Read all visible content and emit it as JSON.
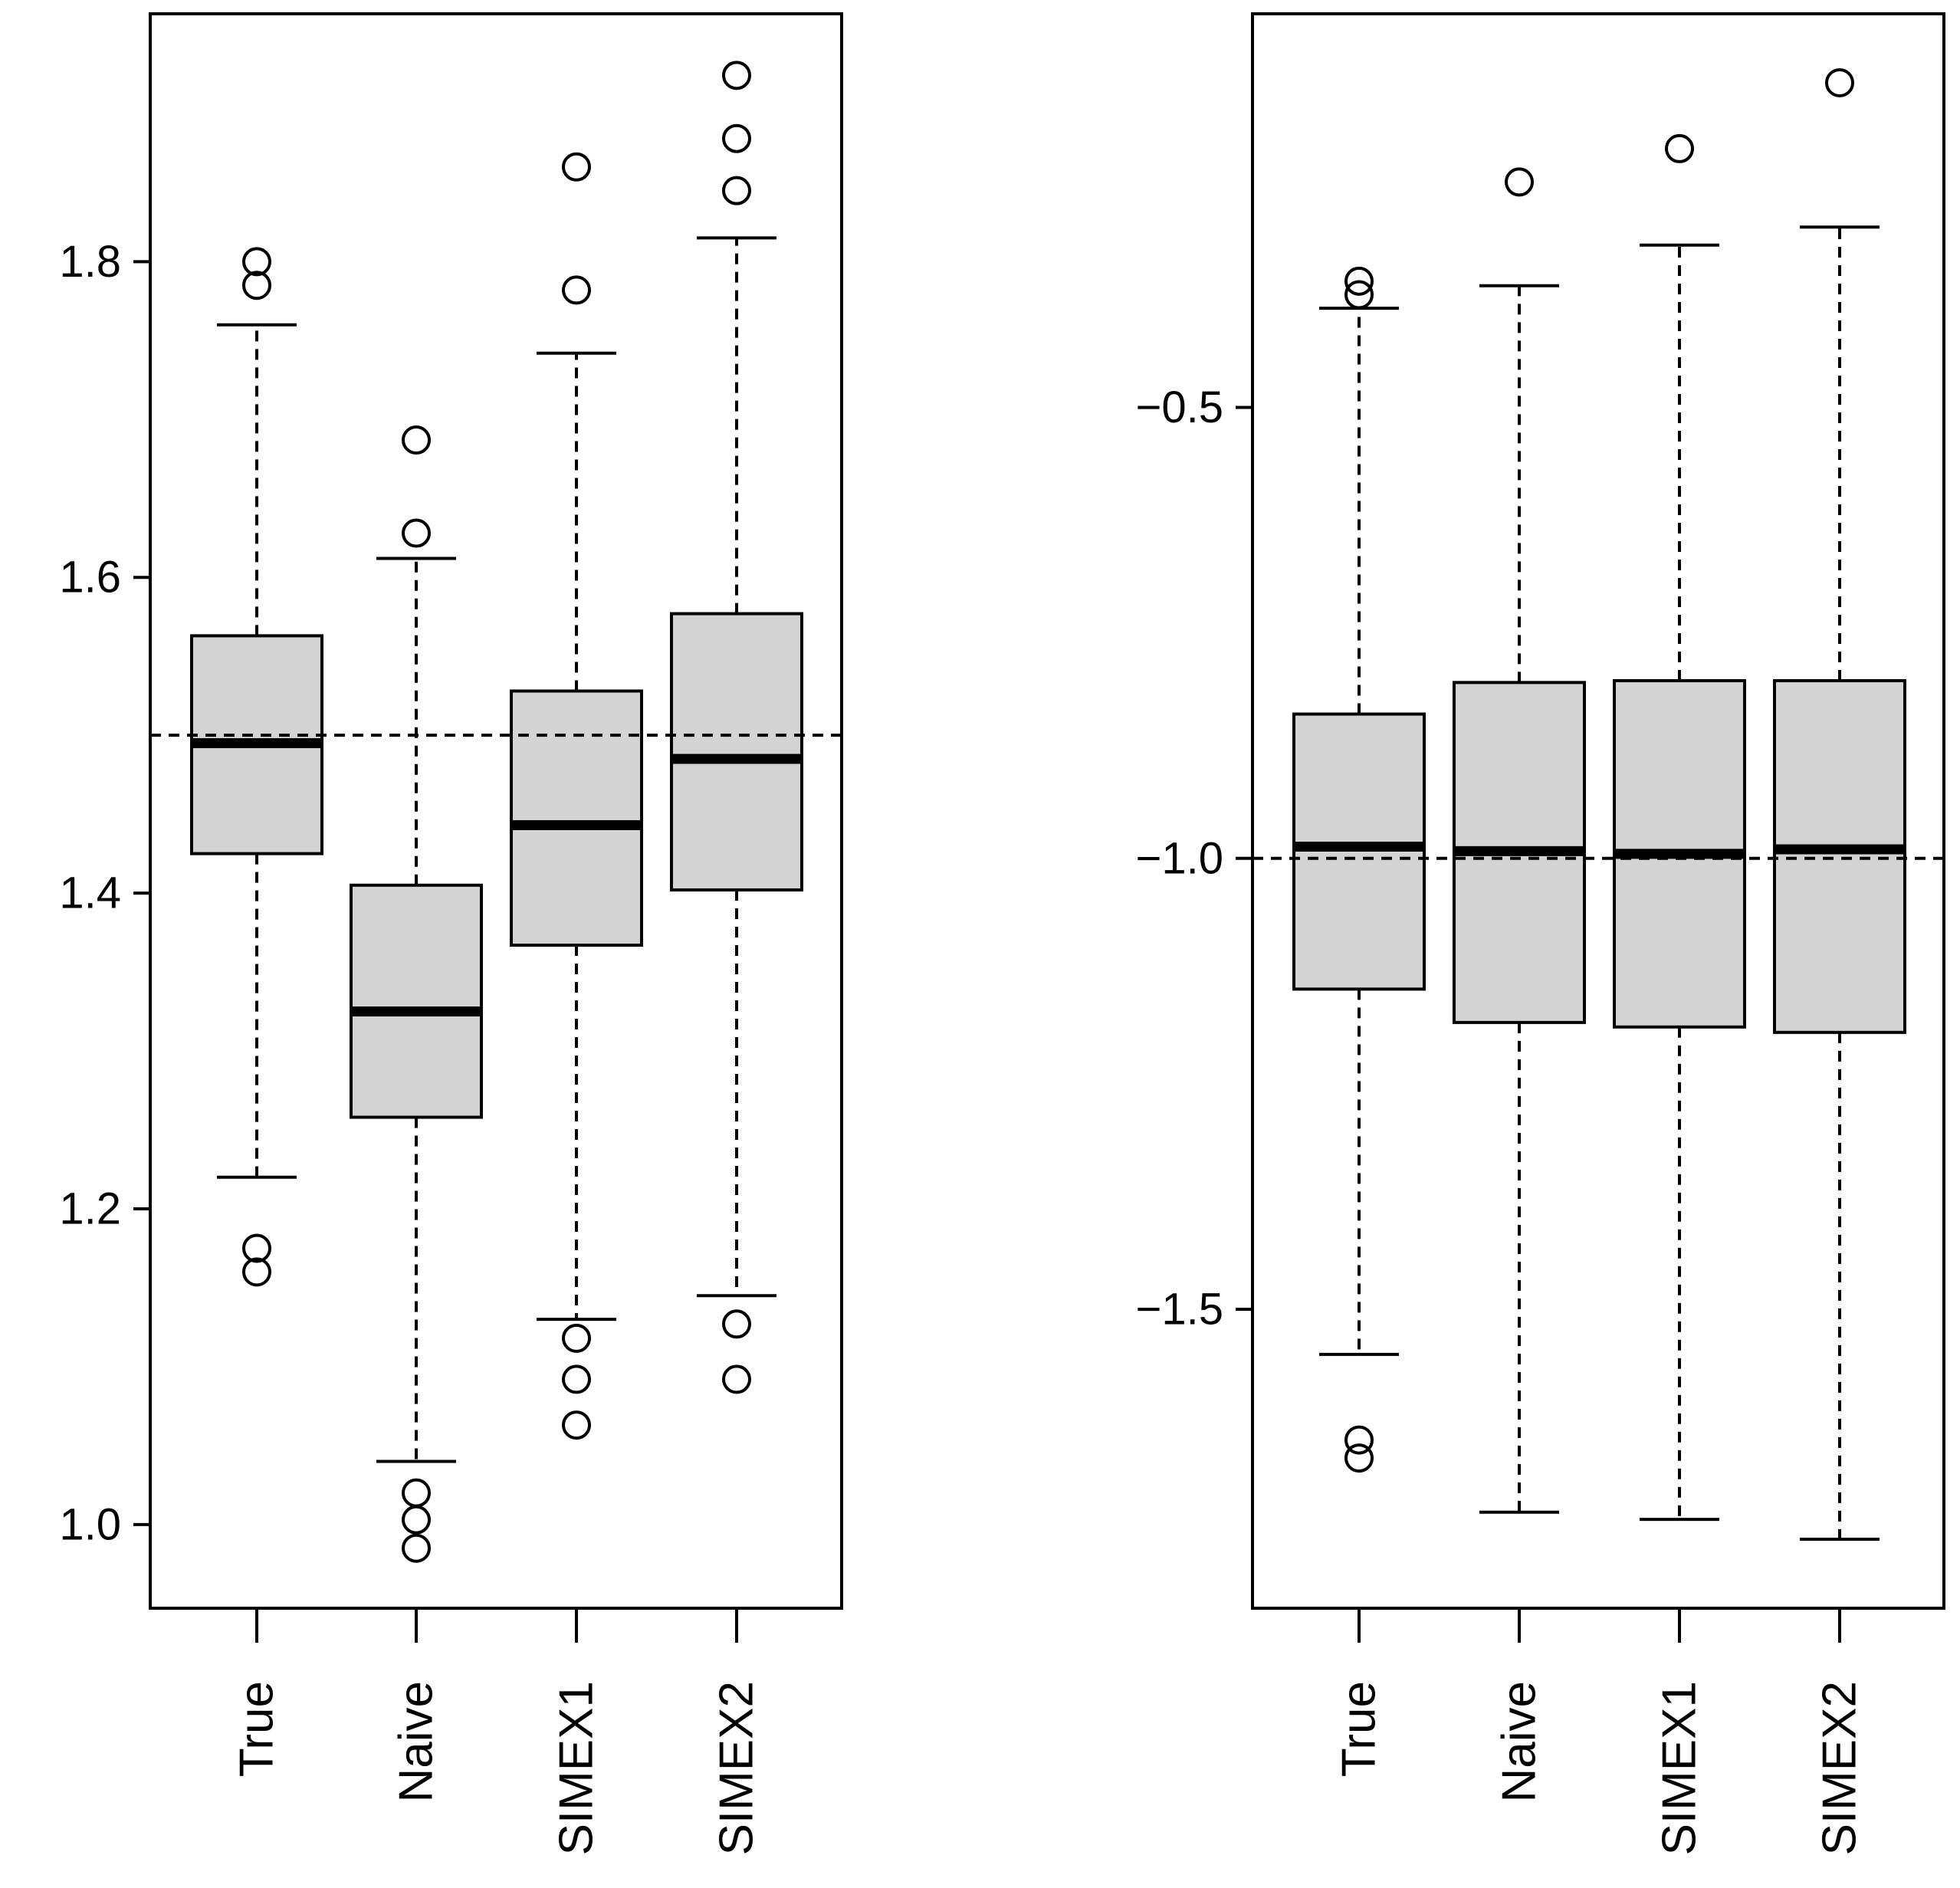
{
  "style": {
    "box_fill": "#d3d3d3",
    "stroke": "#000000",
    "background": "#ffffff"
  },
  "chart_data": [
    {
      "type": "boxplot",
      "title": "",
      "xlabel": "",
      "ylabel": "",
      "categories": [
        "True",
        "Naive",
        "SIMEX1",
        "SIMEX2"
      ],
      "y_ticks": [
        "1.0",
        "1.2",
        "1.4",
        "1.6",
        "1.8"
      ],
      "ylim": [
        0.947,
        1.957
      ],
      "reference_line": 1.5,
      "boxes": [
        {
          "category": "True",
          "whisker_low": 1.22,
          "q1": 1.425,
          "median": 1.495,
          "q3": 1.563,
          "whisker_high": 1.76,
          "outliers": [
            1.8,
            1.785,
            1.175,
            1.16
          ]
        },
        {
          "category": "Naive",
          "whisker_low": 1.04,
          "q1": 1.258,
          "median": 1.325,
          "q3": 1.405,
          "whisker_high": 1.612,
          "outliers": [
            1.687,
            1.628,
            1.02,
            1.003,
            0.985
          ]
        },
        {
          "category": "SIMEX1",
          "whisker_low": 1.13,
          "q1": 1.367,
          "median": 1.443,
          "q3": 1.528,
          "whisker_high": 1.742,
          "outliers": [
            1.86,
            1.782,
            1.118,
            1.092,
            1.063
          ]
        },
        {
          "category": "SIMEX2",
          "whisker_low": 1.145,
          "q1": 1.402,
          "median": 1.485,
          "q3": 1.577,
          "whisker_high": 1.815,
          "outliers": [
            1.918,
            1.878,
            1.845,
            1.127,
            1.092
          ]
        }
      ]
    },
    {
      "type": "boxplot",
      "title": "",
      "xlabel": "",
      "ylabel": "",
      "categories": [
        "True",
        "Naive",
        "SIMEX1",
        "SIMEX2"
      ],
      "y_ticks": [
        "−0.5",
        "−1.0",
        "−1.5"
      ],
      "ylim": [
        -1.8315,
        -0.0635
      ],
      "reference_line": -1.0,
      "boxes": [
        {
          "category": "True",
          "whisker_low": -1.55,
          "q1": -1.145,
          "median": -0.987,
          "q3": -0.84,
          "whisker_high": -0.39,
          "outliers": [
            -0.375,
            -0.36,
            -1.645,
            -1.665
          ]
        },
        {
          "category": "Naive",
          "whisker_low": -1.725,
          "q1": -1.182,
          "median": -0.992,
          "q3": -0.805,
          "whisker_high": -0.365,
          "outliers": [
            -0.25
          ]
        },
        {
          "category": "SIMEX1",
          "whisker_low": -1.733,
          "q1": -1.187,
          "median": -0.995,
          "q3": -0.803,
          "whisker_high": -0.32,
          "outliers": [
            -0.213
          ]
        },
        {
          "category": "SIMEX2",
          "whisker_low": -1.755,
          "q1": -1.193,
          "median": -0.99,
          "q3": -0.803,
          "whisker_high": -0.3,
          "outliers": [
            -0.14
          ]
        }
      ]
    }
  ]
}
